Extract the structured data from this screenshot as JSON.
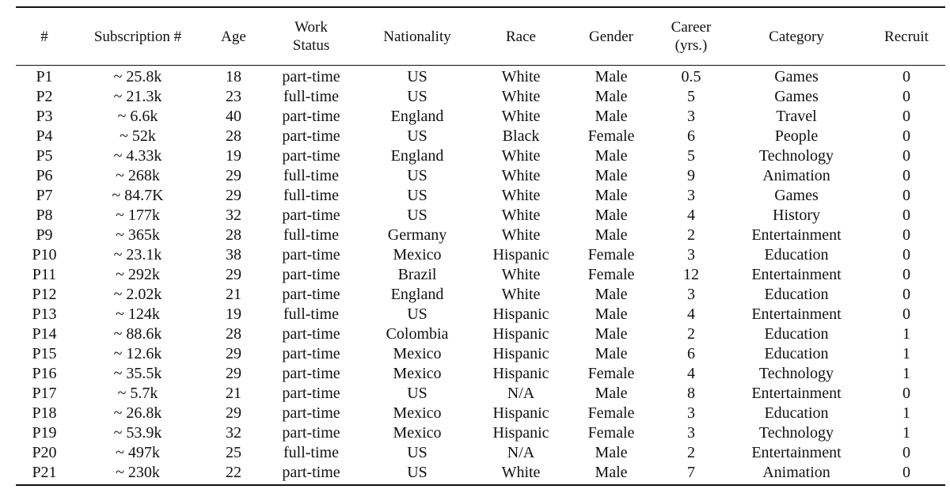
{
  "table": {
    "headers": {
      "num": "#",
      "subs": "Subscription #",
      "age": "Age",
      "work_line1": "Work",
      "work_line2": "Status",
      "nationality": "Nationality",
      "race": "Race",
      "gender": "Gender",
      "career_line1": "Career",
      "career_line2": "(yrs.)",
      "category": "Category",
      "recruit": "Recruit"
    },
    "rows": [
      {
        "id": "P1",
        "subs": "~ 25.8k",
        "age": "18",
        "work": "part-time",
        "nationality": "US",
        "race": "White",
        "gender": "Male",
        "career": "0.5",
        "category": "Games",
        "recruit": "0"
      },
      {
        "id": "P2",
        "subs": "~ 21.3k",
        "age": "23",
        "work": "full-time",
        "nationality": "US",
        "race": "White",
        "gender": "Male",
        "career": "5",
        "category": "Games",
        "recruit": "0"
      },
      {
        "id": "P3",
        "subs": "~ 6.6k",
        "age": "40",
        "work": "part-time",
        "nationality": "England",
        "race": "White",
        "gender": "Male",
        "career": "3",
        "category": "Travel",
        "recruit": "0"
      },
      {
        "id": "P4",
        "subs": "~ 52k",
        "age": "28",
        "work": "part-time",
        "nationality": "US",
        "race": "Black",
        "gender": "Female",
        "career": "6",
        "category": "People",
        "recruit": "0"
      },
      {
        "id": "P5",
        "subs": "~ 4.33k",
        "age": "19",
        "work": "part-time",
        "nationality": "England",
        "race": "White",
        "gender": "Male",
        "career": "5",
        "category": "Technology",
        "recruit": "0"
      },
      {
        "id": "P6",
        "subs": "~ 268k",
        "age": "29",
        "work": "full-time",
        "nationality": "US",
        "race": "White",
        "gender": "Male",
        "career": "9",
        "category": "Animation",
        "recruit": "0"
      },
      {
        "id": "P7",
        "subs": "~ 84.7K",
        "age": "29",
        "work": "full-time",
        "nationality": "US",
        "race": "White",
        "gender": "Male",
        "career": "3",
        "category": "Games",
        "recruit": "0"
      },
      {
        "id": "P8",
        "subs": "~ 177k",
        "age": "32",
        "work": "part-time",
        "nationality": "US",
        "race": "White",
        "gender": "Male",
        "career": "4",
        "category": "History",
        "recruit": "0"
      },
      {
        "id": "P9",
        "subs": "~ 365k",
        "age": "28",
        "work": "full-time",
        "nationality": "Germany",
        "race": "White",
        "gender": "Male",
        "career": "2",
        "category": "Entertainment",
        "recruit": "0"
      },
      {
        "id": "P10",
        "subs": "~ 23.1k",
        "age": "38",
        "work": "part-time",
        "nationality": "Mexico",
        "race": "Hispanic",
        "gender": "Female",
        "career": "3",
        "category": "Education",
        "recruit": "0"
      },
      {
        "id": "P11",
        "subs": "~ 292k",
        "age": "29",
        "work": "part-time",
        "nationality": "Brazil",
        "race": "White",
        "gender": "Female",
        "career": "12",
        "category": "Entertainment",
        "recruit": "0"
      },
      {
        "id": "P12",
        "subs": "~ 2.02k",
        "age": "21",
        "work": "part-time",
        "nationality": "England",
        "race": "White",
        "gender": "Male",
        "career": "3",
        "category": "Education",
        "recruit": "0"
      },
      {
        "id": "P13",
        "subs": "~ 124k",
        "age": "19",
        "work": "full-time",
        "nationality": "US",
        "race": "Hispanic",
        "gender": "Male",
        "career": "4",
        "category": "Entertainment",
        "recruit": "0"
      },
      {
        "id": "P14",
        "subs": "~ 88.6k",
        "age": "28",
        "work": "part-time",
        "nationality": "Colombia",
        "race": "Hispanic",
        "gender": "Male",
        "career": "2",
        "category": "Education",
        "recruit": "1"
      },
      {
        "id": "P15",
        "subs": "~ 12.6k",
        "age": "29",
        "work": "part-time",
        "nationality": "Mexico",
        "race": "Hispanic",
        "gender": "Male",
        "career": "6",
        "category": "Education",
        "recruit": "1"
      },
      {
        "id": "P16",
        "subs": "~ 35.5k",
        "age": "29",
        "work": "part-time",
        "nationality": "Mexico",
        "race": "Hispanic",
        "gender": "Female",
        "career": "4",
        "category": "Technology",
        "recruit": "1"
      },
      {
        "id": "P17",
        "subs": "~ 5.7k",
        "age": "21",
        "work": "part-time",
        "nationality": "US",
        "race": "N/A",
        "gender": "Male",
        "career": "8",
        "category": "Entertainment",
        "recruit": "0"
      },
      {
        "id": "P18",
        "subs": "~ 26.8k",
        "age": "29",
        "work": "part-time",
        "nationality": "Mexico",
        "race": "Hispanic",
        "gender": "Female",
        "career": "3",
        "category": "Education",
        "recruit": "1"
      },
      {
        "id": "P19",
        "subs": "~ 53.9k",
        "age": "32",
        "work": "part-time",
        "nationality": "Mexico",
        "race": "Hispanic",
        "gender": "Female",
        "career": "3",
        "category": "Technology",
        "recruit": "1"
      },
      {
        "id": "P20",
        "subs": "~ 497k",
        "age": "25",
        "work": "full-time",
        "nationality": "US",
        "race": "N/A",
        "gender": "Male",
        "career": "2",
        "category": "Entertainment",
        "recruit": "0"
      },
      {
        "id": "P21",
        "subs": "~ 230k",
        "age": "22",
        "work": "part-time",
        "nationality": "US",
        "race": "White",
        "gender": "Male",
        "career": "7",
        "category": "Animation",
        "recruit": "0"
      }
    ]
  }
}
